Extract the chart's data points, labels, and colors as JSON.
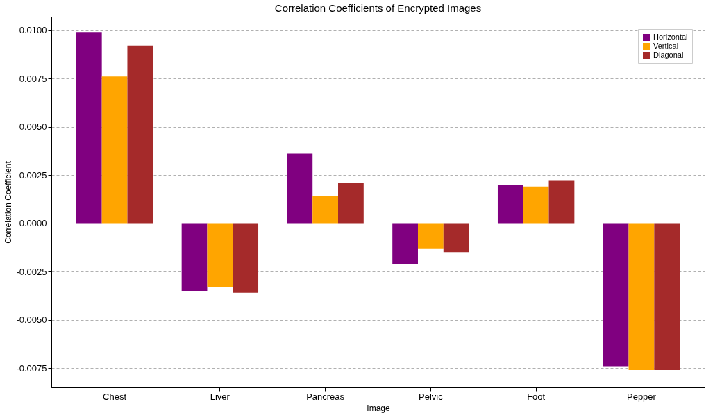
{
  "chart_data": {
    "type": "bar",
    "title": "Correlation Coefficients of Encrypted Images",
    "xlabel": "Image",
    "ylabel": "Correlation Coefficient",
    "categories": [
      "Chest",
      "Liver",
      "Pancreas",
      "Pelvic",
      "Foot",
      "Pepper"
    ],
    "series": [
      {
        "name": "Horizontal",
        "color": "#800080",
        "values": [
          0.0099,
          -0.0035,
          0.0036,
          -0.0021,
          0.002,
          -0.0074
        ]
      },
      {
        "name": "Vertical",
        "color": "#ffa500",
        "values": [
          0.0076,
          -0.0033,
          0.0014,
          -0.0013,
          0.0019,
          -0.0076
        ]
      },
      {
        "name": "Diagonal",
        "color": "#a52a2a",
        "values": [
          0.0092,
          -0.0036,
          0.0021,
          -0.0015,
          0.0022,
          -0.0076
        ]
      }
    ],
    "ylim": [
      -0.0085,
      0.0107
    ],
    "yticks": [
      {
        "value": -0.0075,
        "label": "-0.0075"
      },
      {
        "value": -0.005,
        "label": "-0.0050"
      },
      {
        "value": -0.0025,
        "label": "-0.0025"
      },
      {
        "value": 0,
        "label": "0.0000"
      },
      {
        "value": 0.0025,
        "label": "0.0025"
      },
      {
        "value": 0.005,
        "label": "0.0050"
      },
      {
        "value": 0.0075,
        "label": "0.0075"
      },
      {
        "value": 0.01,
        "label": "0.0100"
      }
    ],
    "grid": "y",
    "legend": "top right"
  }
}
